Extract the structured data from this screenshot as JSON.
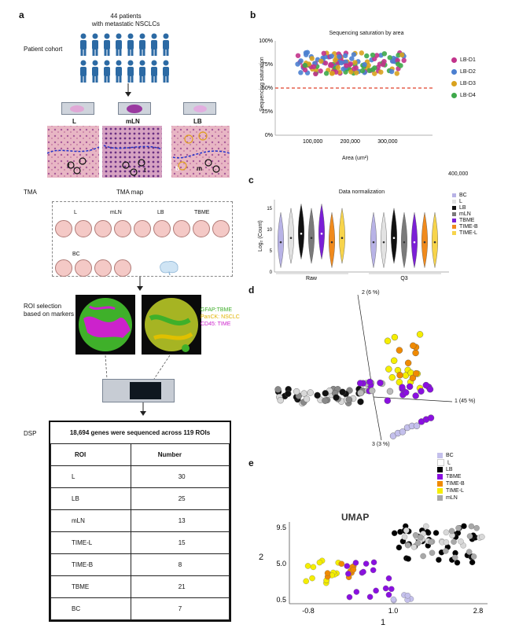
{
  "panel_a": {
    "letter": "a",
    "cohort_title_1": "44 patients",
    "cohort_title_2": "with metastatic NSCLCs",
    "cohort_label": "Patient cohort",
    "tissue_labels": [
      "L",
      "mLN",
      "LB"
    ],
    "tissue_marks": [
      "t",
      "t",
      "b",
      "m"
    ],
    "tma_label": "TMA",
    "tma_map_label": "TMA map",
    "tma_row1_labels": [
      "L",
      "mLN",
      "LB",
      "TBME"
    ],
    "tma_row2_label": "BC",
    "roi_label_1": "ROI selection",
    "roi_label_2": "based on markers",
    "marker_legend": [
      {
        "text": "GFAP:TBME",
        "color": "#3fae2a"
      },
      {
        "text": "PanCK: NSCLC",
        "color": "#e0b400"
      },
      {
        "text": "CD45: TIME",
        "color": "#cc22cc"
      }
    ],
    "dsp_label": "DSP",
    "table_title": "18,694 genes were sequenced across 119 ROIs",
    "table_headers": [
      "ROI",
      "Number"
    ],
    "table_rows": [
      {
        "roi": "L",
        "number": "30"
      },
      {
        "roi": "LB",
        "number": "25"
      },
      {
        "roi": "mLN",
        "number": "13"
      },
      {
        "roi": "TIME-L",
        "number": "15"
      },
      {
        "roi": "TIME-B",
        "number": "8"
      },
      {
        "roi": "TBME",
        "number": "21"
      },
      {
        "roi": "BC",
        "number": "7"
      }
    ]
  },
  "panel_b": {
    "letter": "b",
    "extra_tick": "400,000",
    "chart_data": {
      "type": "scatter",
      "title": "Sequencing saturation by area",
      "xlabel": "Area (um²)",
      "ylabel": "Sequencing saturation",
      "xlim": [
        0,
        420000
      ],
      "ylim": [
        0,
        1.0
      ],
      "xticks": [
        "100,000",
        "200,000",
        "300,000"
      ],
      "xtick_values": [
        100000,
        200000,
        300000
      ],
      "yticks": [
        "0%",
        "25%",
        "50%",
        "75%",
        "100%"
      ],
      "ytick_values": [
        0,
        0.25,
        0.5,
        0.75,
        1.0
      ],
      "threshold": 0.5,
      "legend_position": "right",
      "series": [
        {
          "name": "LB-D1",
          "color": "#c2338b"
        },
        {
          "name": "LB-D2",
          "color": "#4b7fd0"
        },
        {
          "name": "LB-D3",
          "color": "#d9a21e"
        },
        {
          "name": "LB-D4",
          "color": "#3ea84a"
        }
      ],
      "x_range_points": [
        60000,
        350000
      ],
      "y_range_points": [
        0.65,
        0.88
      ]
    }
  },
  "panel_c": {
    "letter": "c",
    "chart_data": {
      "type": "violin",
      "title": "Data normalization",
      "ylabel": "Log₂ (Count)",
      "ylim": [
        0,
        17
      ],
      "yticks": [
        "0",
        "5",
        "10",
        "15"
      ],
      "ytick_values": [
        0,
        5,
        10,
        15
      ],
      "groups": [
        "Raw",
        "Q3"
      ],
      "categories": [
        "BC",
        "L",
        "LB",
        "mLN",
        "TBME",
        "TIME-B",
        "TIME-L"
      ],
      "colors": [
        "#b8b3e6",
        "#e2e2e2",
        "#111111",
        "#7a7a7a",
        "#7b1fd6",
        "#f08a1c",
        "#f7d44b"
      ],
      "medians_raw": [
        7,
        8,
        9,
        8,
        9,
        7,
        8
      ],
      "medians_q3": [
        7,
        7,
        8,
        7,
        7,
        7,
        7
      ]
    }
  },
  "panel_d": {
    "letter": "d",
    "axis_labels": [
      "1 (45 %)",
      "2 (6 %)",
      "3 (3 %)"
    ]
  },
  "panel_e": {
    "letter": "e",
    "legend": [
      {
        "name": "BC",
        "color": "#c4c0ec"
      },
      {
        "name": "L",
        "color": "#ffffff"
      },
      {
        "name": "LB",
        "color": "#000000"
      },
      {
        "name": "TBME",
        "color": "#8a10e0"
      },
      {
        "name": "TIME-B",
        "color": "#f08a00"
      },
      {
        "name": "TIME-L",
        "color": "#f5ee00"
      },
      {
        "name": "mLN",
        "color": "#a8a8a8"
      }
    ],
    "chart_data": {
      "type": "scatter",
      "title": "UMAP",
      "xlabel": "1",
      "ylabel": "2",
      "xlim": [
        -1.2,
        3.0
      ],
      "ylim": [
        0.0,
        10.2
      ],
      "xticks": [
        "-0.8",
        "1.0",
        "2.8"
      ],
      "xtick_values": [
        -0.8,
        1.0,
        2.8
      ],
      "yticks": [
        "0.5",
        "5.0",
        "9.5"
      ],
      "ytick_values": [
        0.5,
        5.0,
        9.5
      ]
    }
  }
}
